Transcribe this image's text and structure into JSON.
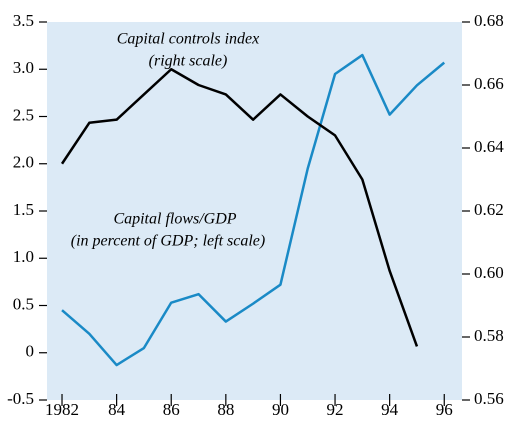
{
  "chart_data": {
    "type": "line",
    "annotations": [
      "Capital controls index",
      "(right scale)",
      "Capital flows/GDP",
      "(in percent of GDP; left scale)"
    ],
    "x": [
      1982,
      1983,
      1984,
      1985,
      1986,
      1987,
      1988,
      1989,
      1990,
      1991,
      1992,
      1993,
      1994,
      1995,
      1996
    ],
    "series": [
      {
        "name": "Capital flows/GDP",
        "color": "#1a8ac6",
        "axis": "y",
        "values": [
          0.45,
          0.2,
          -0.13,
          0.05,
          0.53,
          0.62,
          0.33,
          0.52,
          0.72,
          1.95,
          2.95,
          3.15,
          2.52,
          2.83,
          3.07
        ]
      },
      {
        "name": "Capital controls index",
        "color": "#000000",
        "axis": "y2",
        "values": [
          0.635,
          0.648,
          0.649,
          0.657,
          0.665,
          0.66,
          0.657,
          0.649,
          0.657,
          0.65,
          0.644,
          0.63,
          0.601,
          0.577,
          null
        ]
      }
    ],
    "xlim": [
      1981.45,
      1996.65
    ],
    "xticks": [
      {
        "value": 1982,
        "label": "1982"
      },
      {
        "value": 1984,
        "label": "84"
      },
      {
        "value": 1986,
        "label": "86"
      },
      {
        "value": 1988,
        "label": "88"
      },
      {
        "value": 1990,
        "label": "90"
      },
      {
        "value": 1992,
        "label": "92"
      },
      {
        "value": 1994,
        "label": "94"
      },
      {
        "value": 1996,
        "label": "96"
      }
    ],
    "ylim": [
      -0.5,
      3.5
    ],
    "yticks": [
      -0.5,
      0,
      0.5,
      {
        "value": 1,
        "label": "1.0"
      },
      1.5,
      {
        "value": 2,
        "label": "2.0"
      },
      2.5,
      {
        "value": 3,
        "label": "3.0"
      },
      3.5
    ],
    "y2lim": [
      0.56,
      0.68
    ],
    "y2ticks": [
      0.56,
      0.58,
      {
        "value": 0.6,
        "label": "0.60"
      },
      0.62,
      0.64,
      0.66,
      0.68
    ]
  }
}
